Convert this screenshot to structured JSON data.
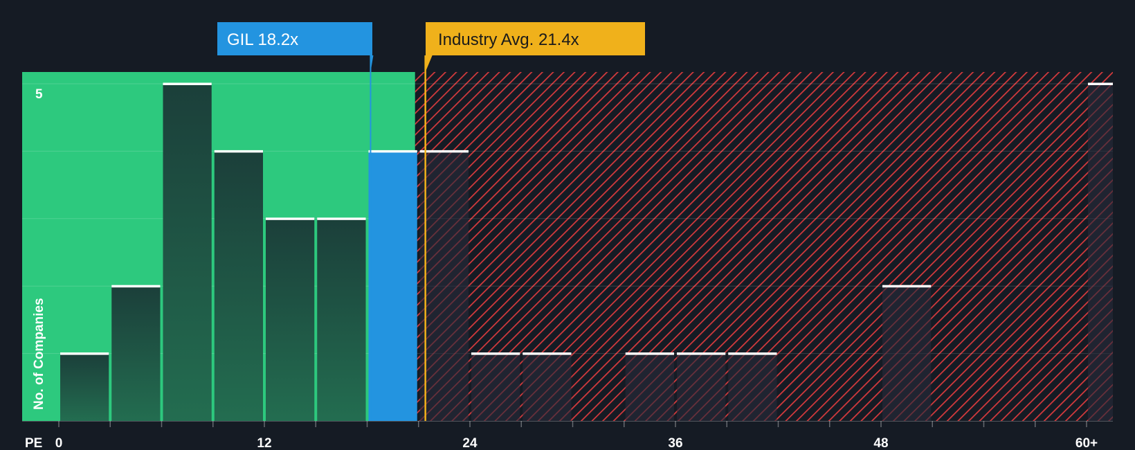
{
  "chart_data": {
    "type": "bar",
    "title": "",
    "xlabel": "PE",
    "ylabel": "No. of Companies",
    "bin_width": 3,
    "x_range": [
      0,
      63
    ],
    "ylim": [
      0,
      5
    ],
    "y_ticks": [
      5
    ],
    "x_ticks": [
      {
        "value": 0,
        "label": "0"
      },
      {
        "value": 12,
        "label": "12"
      },
      {
        "value": 24,
        "label": "24"
      },
      {
        "value": 36,
        "label": "36"
      },
      {
        "value": 48,
        "label": "48"
      },
      {
        "value": 60,
        "label": "60+"
      }
    ],
    "bins": [
      {
        "start": 0,
        "count": 1
      },
      {
        "start": 3,
        "count": 2
      },
      {
        "start": 6,
        "count": 5
      },
      {
        "start": 9,
        "count": 4
      },
      {
        "start": 12,
        "count": 3
      },
      {
        "start": 15,
        "count": 3
      },
      {
        "start": 18,
        "count": 4,
        "highlight": true
      },
      {
        "start": 21,
        "count": 4
      },
      {
        "start": 24,
        "count": 1
      },
      {
        "start": 27,
        "count": 1
      },
      {
        "start": 33,
        "count": 1
      },
      {
        "start": 36,
        "count": 1
      },
      {
        "start": 39,
        "count": 1
      },
      {
        "start": 48,
        "count": 2
      },
      {
        "start": 60,
        "count": 5
      }
    ],
    "company": {
      "label": "GIL 18.2x",
      "value": 18.2
    },
    "industry_avg": {
      "label": "Industry Avg. 21.4x",
      "value": 21.4
    },
    "fair_zone_end": 20.8
  },
  "colors": {
    "background": "#151b24",
    "fair_zone": "#2dc97e",
    "bar": "#1e5a44",
    "highlight_bar": "#2394e0",
    "hatch": "#d63a3d",
    "industry": "#f0b11b",
    "company_callout": "#2394e0"
  }
}
